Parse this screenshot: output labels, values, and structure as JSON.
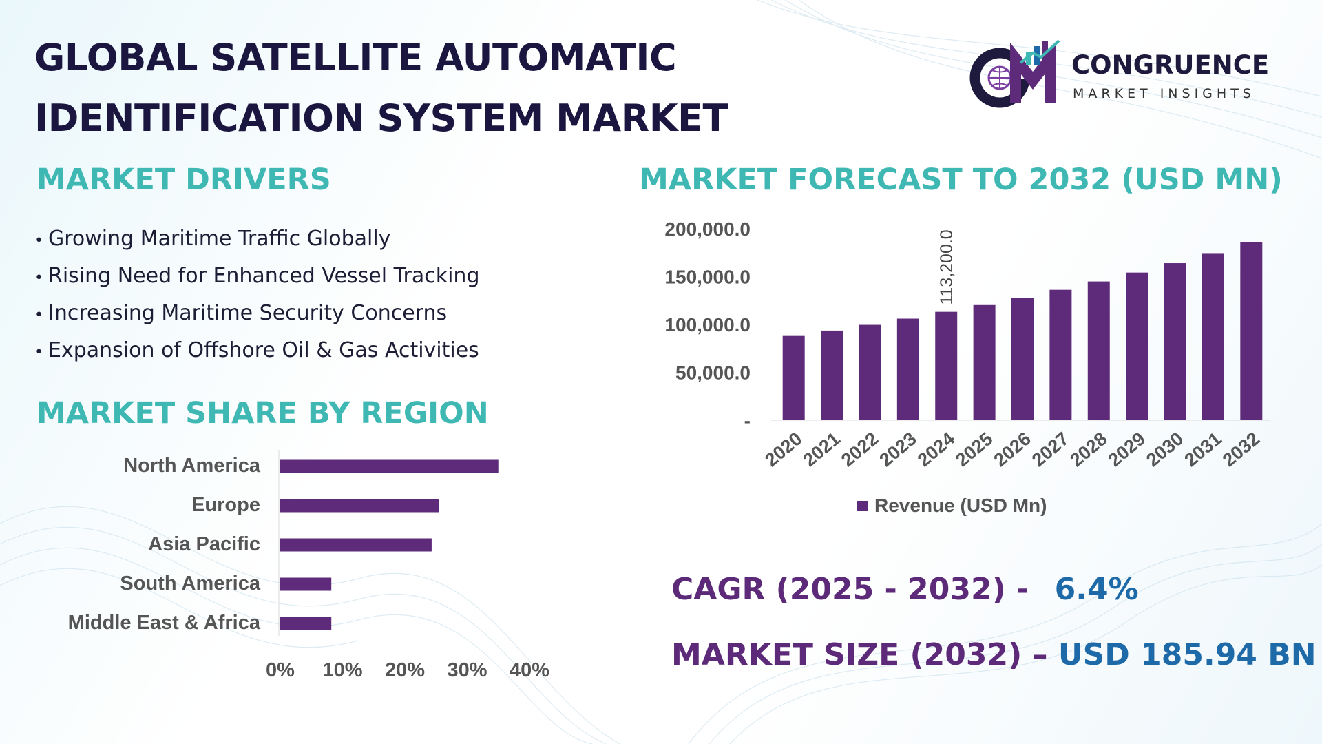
{
  "title": {
    "line1": "GLOBAL SATELLITE AUTOMATIC",
    "line2": "IDENTIFICATION SYSTEM MARKET"
  },
  "logo": {
    "initials": "CM",
    "name": "CONGRUENCE",
    "subtitle": "MARKET INSIGHTS"
  },
  "drivers": {
    "heading": "MARKET DRIVERS",
    "items": [
      "Growing Maritime Traffic Globally",
      "Rising Need for Enhanced Vessel Tracking",
      "Increasing Maritime Security Concerns",
      "Expansion of Offshore Oil & Gas Activities"
    ]
  },
  "region": {
    "heading": "MARKET SHARE BY REGION"
  },
  "forecast": {
    "heading": "MARKET FORECAST TO 2032 (USD MN)"
  },
  "kpis": {
    "cagr_label": "CAGR (2025 - 2032) -",
    "cagr_value": "6.4%",
    "size_label": "MARKET SIZE (2032) –",
    "size_value": "USD 185.94 BN"
  },
  "colors": {
    "bar": "#5e2b7a",
    "heading": "#3fb8b4",
    "title": "#1b1640",
    "kpi_label": "#5c2a78",
    "kpi_value": "#1e6aa8",
    "axis_text": "#555555"
  },
  "chart_data": [
    {
      "type": "bar",
      "orientation": "horizontal",
      "categories": [
        "North America",
        "Europe",
        "Asia Pacific",
        "South America",
        "Middle East & Africa"
      ],
      "values": [
        35,
        25.5,
        24.3,
        8.2,
        8.2
      ],
      "unit": "%",
      "xlim": [
        0,
        40
      ],
      "x_ticks": [
        "0%",
        "10%",
        "20%",
        "30%",
        "40%"
      ],
      "legend": "none"
    },
    {
      "type": "bar",
      "categories": [
        "2020",
        "2021",
        "2022",
        "2023",
        "2024",
        "2025",
        "2026",
        "2027",
        "2028",
        "2029",
        "2030",
        "2031",
        "2032"
      ],
      "series": [
        {
          "name": "Revenue (USD Mn)",
          "values": [
            88000,
            93600,
            99600,
            106100,
            113200,
            120300,
            128000,
            136200,
            144900,
            154200,
            164000,
            174500,
            185940
          ]
        }
      ],
      "data_labels": [
        {
          "category": "2024",
          "text": "113,200.0"
        }
      ],
      "ylim": [
        0,
        200000
      ],
      "y_ticks": [
        "-",
        "50,000.0",
        "100,000.0",
        "150,000.0",
        "200,000.0"
      ],
      "legend": "bottom"
    }
  ]
}
